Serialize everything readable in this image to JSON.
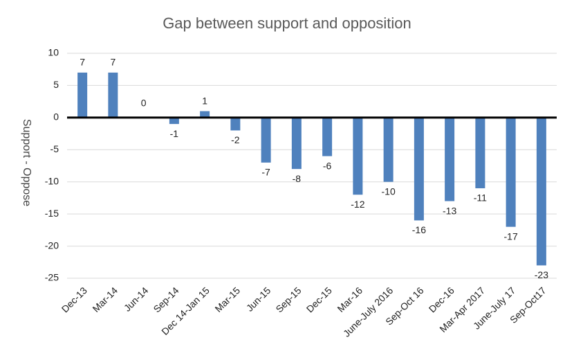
{
  "chart_data": {
    "type": "bar",
    "title": "Gap between support and opposition",
    "y_label": "Support - Oppose",
    "categories": [
      "Dec-13",
      "Mar-14",
      "Jun-14",
      "Sep-14",
      "Dec 14-Jan 15",
      "Mar-15",
      "Jun-15",
      "Sep-15",
      "Dec-15",
      "Mar-16",
      "June-July 2016",
      "Sep-Oct 16",
      "Dec-16",
      "Mar-Apr 2017",
      "June-July 17",
      "Sep-Oct17"
    ],
    "values": [
      7,
      7,
      0,
      -1,
      1,
      -2,
      -7,
      -8,
      -6,
      -12,
      -10,
      -16,
      -13,
      -11,
      -17,
      -23
    ],
    "color": "#4f81bd",
    "ylim": [
      -25,
      10
    ],
    "yticks": [
      -25,
      -20,
      -15,
      -10,
      -5,
      0,
      5,
      10
    ],
    "grid": true
  }
}
